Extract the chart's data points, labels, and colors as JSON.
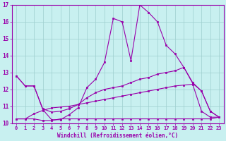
{
  "background_color": "#c8f0f0",
  "grid_color": "#9ecece",
  "line_color": "#9900aa",
  "xlabel": "Windchill (Refroidissement éolien,°C)",
  "xlim": [
    -0.5,
    23.5
  ],
  "ylim": [
    10,
    17
  ],
  "xticks": [
    0,
    1,
    2,
    3,
    4,
    5,
    6,
    7,
    8,
    9,
    10,
    11,
    12,
    13,
    14,
    15,
    16,
    17,
    18,
    19,
    20,
    21,
    22,
    23
  ],
  "yticks": [
    10,
    11,
    12,
    13,
    14,
    15,
    16,
    17
  ],
  "lines": [
    {
      "x": [
        0,
        1,
        2,
        3,
        4,
        5,
        6,
        7,
        8,
        9,
        10,
        11,
        12,
        13,
        14,
        15,
        16,
        17,
        18,
        19,
        20,
        21,
        22,
        23
      ],
      "y": [
        12.8,
        12.2,
        12.2,
        10.8,
        10.2,
        10.2,
        10.5,
        10.9,
        12.1,
        12.6,
        13.6,
        16.2,
        16.0,
        13.7,
        17.0,
        16.55,
        16.0,
        14.6,
        14.1,
        13.3,
        12.4,
        11.9,
        10.7,
        10.35
      ]
    },
    {
      "x": [
        0,
        1,
        2,
        3,
        4,
        5,
        6,
        7,
        8,
        9,
        10,
        11,
        12,
        13,
        14,
        15,
        16,
        17,
        18,
        19,
        20,
        21,
        22,
        23
      ],
      "y": [
        12.8,
        12.2,
        12.2,
        10.85,
        10.65,
        10.7,
        10.85,
        11.1,
        11.5,
        11.8,
        12.0,
        12.1,
        12.2,
        12.4,
        12.6,
        12.7,
        12.9,
        13.0,
        13.1,
        13.3,
        12.35,
        11.9,
        10.7,
        10.35
      ]
    },
    {
      "x": [
        0,
        1,
        2,
        3,
        4,
        5,
        6,
        7,
        8,
        9,
        10,
        11,
        12,
        13,
        14,
        15,
        16,
        17,
        18,
        19,
        20,
        21,
        22,
        23
      ],
      "y": [
        10.25,
        10.25,
        10.25,
        10.15,
        10.15,
        10.25,
        10.25,
        10.25,
        10.25,
        10.25,
        10.25,
        10.25,
        10.25,
        10.25,
        10.25,
        10.25,
        10.25,
        10.25,
        10.25,
        10.25,
        10.25,
        10.25,
        10.25,
        10.35
      ]
    },
    {
      "x": [
        0,
        1,
        2,
        3,
        4,
        5,
        6,
        7,
        8,
        9,
        10,
        11,
        12,
        13,
        14,
        15,
        16,
        17,
        18,
        19,
        20,
        21,
        22,
        23
      ],
      "y": [
        10.25,
        10.25,
        10.55,
        10.75,
        10.9,
        10.95,
        11.0,
        11.1,
        11.2,
        11.3,
        11.4,
        11.5,
        11.6,
        11.7,
        11.8,
        11.9,
        12.0,
        12.1,
        12.2,
        12.25,
        12.3,
        10.7,
        10.35,
        10.35
      ]
    }
  ],
  "marker": "s",
  "markersize": 2.0,
  "linewidth": 0.8,
  "fontsize_ticks": 5.0,
  "fontsize_xlabel": 5.5
}
